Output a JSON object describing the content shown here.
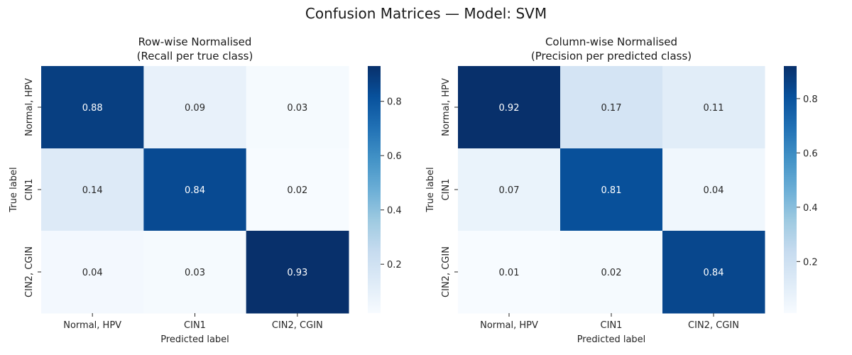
{
  "figure": {
    "suptitle": "Confusion Matrices — Model: SVM"
  },
  "chart_data": [
    {
      "type": "heatmap",
      "title_line1": "Row-wise Normalised",
      "title_line2": "(Recall per true class)",
      "xlabel": "Predicted label",
      "ylabel": "True label",
      "x_categories": [
        "Normal, HPV",
        "CIN1",
        "CIN2, CGIN"
      ],
      "y_categories": [
        "Normal, HPV",
        "CIN1",
        "CIN2, CGIN"
      ],
      "values": [
        [
          0.88,
          0.09,
          0.03
        ],
        [
          0.14,
          0.84,
          0.02
        ],
        [
          0.04,
          0.03,
          0.93
        ]
      ],
      "colormap": "Blues",
      "vmin": 0.02,
      "vmax": 0.93,
      "colorbar_ticks": [
        0.2,
        0.4,
        0.6,
        0.8
      ]
    },
    {
      "type": "heatmap",
      "title_line1": "Column-wise Normalised",
      "title_line2": "(Precision per predicted class)",
      "xlabel": "Predicted label",
      "ylabel": "True label",
      "x_categories": [
        "Normal, HPV",
        "CIN1",
        "CIN2, CGIN"
      ],
      "y_categories": [
        "Normal, HPV",
        "CIN1",
        "CIN2, CGIN"
      ],
      "values": [
        [
          0.92,
          0.17,
          0.11
        ],
        [
          0.07,
          0.81,
          0.04
        ],
        [
          0.01,
          0.02,
          0.84
        ]
      ],
      "colormap": "Blues",
      "vmin": 0.01,
      "vmax": 0.92,
      "colorbar_ticks": [
        0.2,
        0.4,
        0.6,
        0.8
      ]
    }
  ]
}
